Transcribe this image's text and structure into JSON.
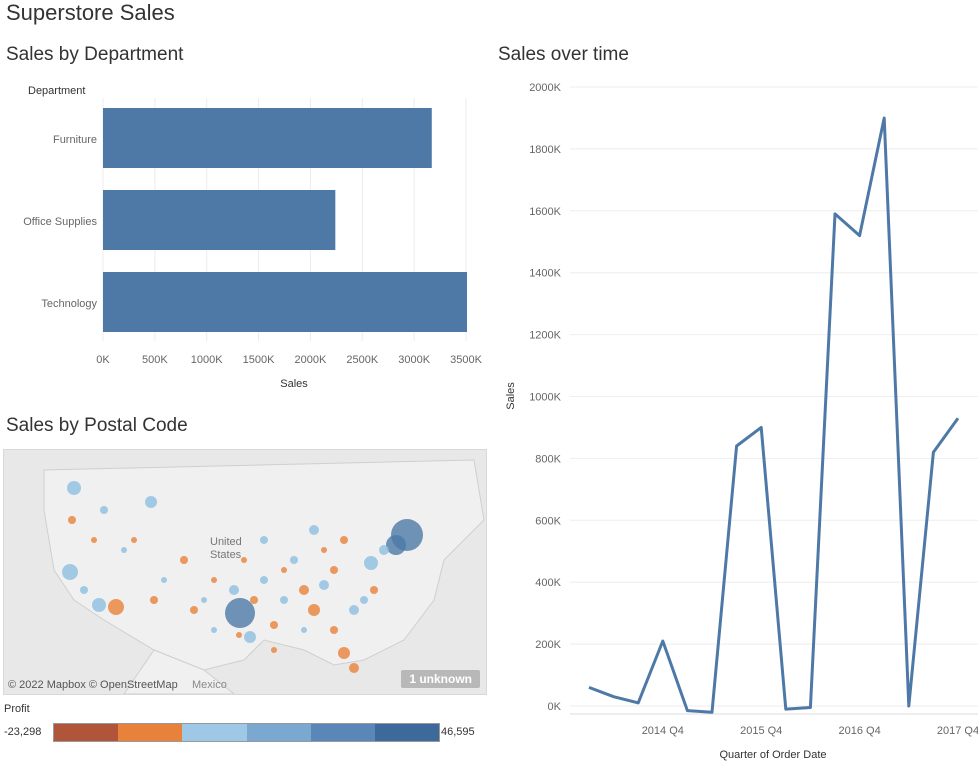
{
  "page_title": "Superstore Sales",
  "sections": {
    "by_department": "Sales by Department",
    "over_time": "Sales over time",
    "by_postal": "Sales by Postal Code"
  },
  "colors": {
    "bar": "#4e79a7",
    "line": "#4e79a7",
    "orange": "#e8823a",
    "light_blue": "#8fbfe0"
  },
  "chart_data": [
    {
      "type": "bar",
      "orientation": "horizontal",
      "title": "Sales by Department",
      "ylabel": "Department",
      "xlabel": "Sales",
      "categories": [
        "Furniture",
        "Office Supplies",
        "Technology"
      ],
      "values": [
        3170000,
        2240000,
        3510000
      ],
      "xlim": [
        0,
        3500000
      ],
      "ticks": [
        "0K",
        "500K",
        "1000K",
        "1500K",
        "2000K",
        "2500K",
        "3000K",
        "3500K"
      ],
      "grid": true
    },
    {
      "type": "line",
      "title": "Sales over time",
      "xlabel": "Quarter of Order Date",
      "ylabel": "Sales",
      "ylim": [
        0,
        2000000
      ],
      "y_ticks": [
        "0K",
        "200K",
        "400K",
        "600K",
        "800K",
        "1000K",
        "1200K",
        "1400K",
        "1600K",
        "1800K",
        "2000K"
      ],
      "x_ticks": [
        "2014 Q4",
        "2015 Q4",
        "2016 Q4",
        "2017 Q4"
      ],
      "x": [
        "2014 Q1",
        "2014 Q2",
        "2014 Q3",
        "2014 Q4",
        "2015 Q1",
        "2015 Q2",
        "2015 Q3",
        "2015 Q4",
        "2016 Q1",
        "2016 Q2",
        "2016 Q3",
        "2016 Q4",
        "2017 Q1",
        "2017 Q2",
        "2017 Q3",
        "2017 Q4"
      ],
      "values": [
        60000,
        30000,
        10000,
        210000,
        -15000,
        -20000,
        840000,
        900000,
        -10000,
        -5000,
        1590000,
        1520000,
        1900000,
        0,
        820000,
        930000
      ],
      "grid": true
    }
  ],
  "map": {
    "attribution": "© 2022 Mapbox © OpenStreetMap",
    "mexico_label": "Mexico",
    "country_label_1": "United",
    "country_label_2": "States",
    "unknown_badge": "1 unknown"
  },
  "legend": {
    "title": "Profit",
    "min": "-23,298",
    "max": "46,595",
    "colors": [
      "#b0553a",
      "#e8823a",
      "#9fc8e6",
      "#7aa8d1",
      "#5a86b8",
      "#3e6a9b"
    ]
  }
}
